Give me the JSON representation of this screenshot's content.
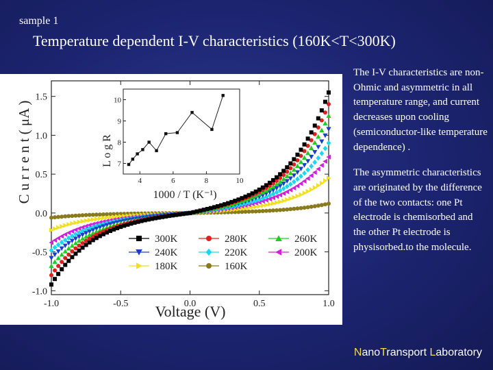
{
  "slide": {
    "label": "sample 1",
    "title": "Temperature dependent I-V characteristics (160K<T<300K)",
    "paragraphs": [
      "The I-V characteristics are non-Ohmic and asymmetric in all temperature range, and current decreases upon cooling (semiconductor-like temperature dependence) .",
      "The asymmetric characteristics are originated by the difference of the two contacts: one Pt electrode is chemisorbed and the other Pt electrode is physisorbed.to the molecule."
    ],
    "lab": {
      "part1_highlight": "N",
      "part1": "ano",
      "part2_highlight": "T",
      "part2": "ransport ",
      "part3_highlight": "L",
      "part3": "aboratory"
    }
  },
  "chart_data": [
    {
      "type": "scatter",
      "xlabel": "Voltage (V)",
      "ylabel": "C u r r e n t ( μA )",
      "xlim": [
        -1.0,
        1.0
      ],
      "ylim": [
        -1.05,
        1.7
      ],
      "x_ticks": [
        "-1.0",
        "-0.5",
        "0.0",
        "0.5",
        "1.0"
      ],
      "y_ticks": [
        "-1.0",
        "-0.5",
        "0.0",
        "0.5",
        "1.0",
        "1.5"
      ],
      "legend_placement": "bottom-center",
      "series": [
        {
          "name": "300K",
          "color": "#000000",
          "marker": "square",
          "i_neg": -0.92,
          "i_pos": 1.55
        },
        {
          "name": "280K",
          "color": "#e0201e",
          "marker": "circle",
          "i_neg": -0.8,
          "i_pos": 1.4
        },
        {
          "name": "260K",
          "color": "#22cc22",
          "marker": "triangle-up",
          "i_neg": -0.68,
          "i_pos": 1.25
        },
        {
          "name": "240K",
          "color": "#1a3dcc",
          "marker": "triangle-down",
          "i_neg": -0.58,
          "i_pos": 1.08
        },
        {
          "name": "220K",
          "color": "#18d8f0",
          "marker": "diamond",
          "i_neg": -0.48,
          "i_pos": 0.9
        },
        {
          "name": "200K",
          "color": "#d020d8",
          "marker": "triangle-left",
          "i_neg": -0.38,
          "i_pos": 0.72
        },
        {
          "name": "180K",
          "color": "#f0e020",
          "marker": "triangle-right",
          "i_neg": -0.22,
          "i_pos": 0.45
        },
        {
          "name": "160K",
          "color": "#8a7a1e",
          "marker": "circle",
          "i_neg": -0.06,
          "i_pos": 0.12
        }
      ]
    },
    {
      "type": "line",
      "inset": true,
      "xlabel": "1000 / T (K⁻¹)",
      "ylabel": "L o g R",
      "xlim": [
        3,
        10
      ],
      "ylim": [
        6.5,
        10.5
      ],
      "x_ticks": [
        "4",
        "6",
        "8",
        "10"
      ],
      "y_ticks": [
        "7",
        "8",
        "9",
        "10"
      ],
      "x": [
        3.33,
        3.57,
        3.85,
        4.17,
        4.55,
        5.0,
        5.56,
        6.25,
        7.14,
        8.33,
        9.0
      ],
      "y": [
        6.95,
        7.2,
        7.45,
        7.65,
        8.0,
        7.6,
        8.4,
        8.45,
        9.4,
        8.6,
        10.2
      ]
    }
  ]
}
